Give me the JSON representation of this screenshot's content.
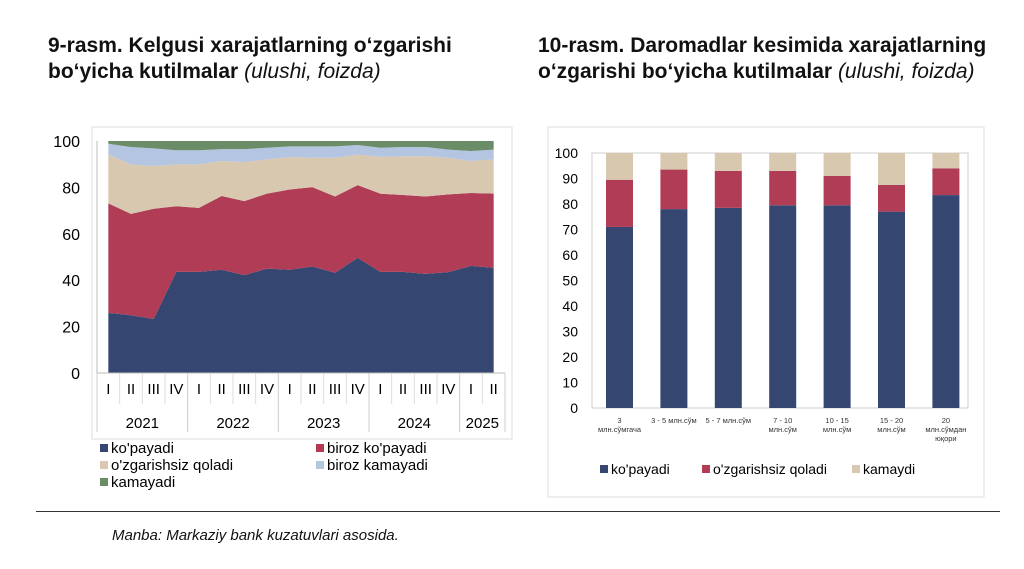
{
  "figure9": {
    "title_bold": "9-rasm. Kelgusi xarajatlarning o‘zgarishi bo‘yicha kutilmalar",
    "title_italic": "(ulushi, foizda)"
  },
  "figure10": {
    "title_bold": "10-rasm. Daromadlar kesimida xarajatlarning o‘zgarishi bo‘yicha kutilmalar",
    "title_italic": "(ulushi, foizda)"
  },
  "source": "Manba: Markaziy bank kuzatuvlari asosida.",
  "chart_data": [
    {
      "type": "area",
      "stacked": true,
      "ylim": [
        0,
        100
      ],
      "yticks": [
        0,
        20,
        40,
        60,
        80,
        100
      ],
      "grid": false,
      "legend": "bottom",
      "categories": [
        "I",
        "II",
        "III",
        "IV",
        "I",
        "II",
        "III",
        "IV",
        "I",
        "II",
        "III",
        "IV",
        "I",
        "II",
        "III",
        "IV",
        "I",
        "II"
      ],
      "year_groups": [
        {
          "label": "2021",
          "count": 4
        },
        {
          "label": "2022",
          "count": 4
        },
        {
          "label": "2023",
          "count": 4
        },
        {
          "label": "2024",
          "count": 4
        },
        {
          "label": "2025",
          "count": 2
        }
      ],
      "series": [
        {
          "name": "ko'payadi",
          "color": "#354770",
          "values": [
            25.9,
            24.9,
            23.3,
            43.6,
            43.6,
            44.5,
            42.2,
            45.0,
            44.5,
            45.9,
            43.2,
            49.6,
            43.6,
            43.6,
            42.7,
            43.5,
            46.2,
            45.3
          ]
        },
        {
          "name": "biroz ko'payadi",
          "color": "#b03c55",
          "values": [
            47.2,
            43.7,
            47.5,
            28.3,
            27.6,
            31.8,
            31.9,
            32.3,
            34.6,
            34.2,
            32.9,
            31.4,
            33.7,
            33.1,
            33.4,
            33.5,
            31.4,
            32.0
          ]
        },
        {
          "name": "o'zgarishsiz qoladi",
          "color": "#d7c8af",
          "values": [
            21.1,
            21.3,
            18.4,
            18.0,
            18.7,
            15.1,
            16.8,
            14.8,
            14.0,
            12.7,
            16.7,
            13.2,
            15.9,
            16.7,
            17.3,
            15.8,
            13.8,
            14.8
          ]
        },
        {
          "name": "biroz kamayadi",
          "color": "#b4c5e2",
          "values": [
            4.6,
            7.5,
            7.6,
            6.1,
            6.1,
            5.1,
            5.6,
            5.0,
            4.6,
            4.9,
            4.9,
            4.1,
            3.9,
            4.0,
            4.0,
            3.5,
            4.3,
            4.2
          ]
        },
        {
          "name": "kamayadi",
          "color": "#6a8c66",
          "values": [
            1.2,
            2.6,
            3.2,
            4.0,
            4.0,
            3.5,
            3.5,
            2.9,
            2.3,
            2.3,
            2.3,
            1.7,
            2.9,
            2.6,
            2.6,
            3.7,
            4.3,
            3.7
          ]
        }
      ]
    },
    {
      "type": "bar",
      "stacked": true,
      "ylim": [
        0,
        100
      ],
      "yticks": [
        0,
        10,
        20,
        30,
        40,
        50,
        60,
        70,
        80,
        90,
        100
      ],
      "grid": false,
      "legend": "bottom",
      "categories": [
        [
          "3",
          "млн.сўмгача"
        ],
        [
          "3 - 5 млн.сўм"
        ],
        [
          "5 - 7 млн.сўм"
        ],
        [
          "7 - 10",
          "млн.сўм"
        ],
        [
          "10 - 15",
          "млн.сўм"
        ],
        [
          "15 - 20",
          "млн.сўм"
        ],
        [
          "20",
          "млн.сўмдан",
          "юқори"
        ]
      ],
      "series": [
        {
          "name": "ko'payadi",
          "color": "#354770",
          "values": [
            71.0,
            78.0,
            78.5,
            79.5,
            79.5,
            77.0,
            83.5
          ]
        },
        {
          "name": "o'zgarishsiz qoladi",
          "color": "#b03c55",
          "values": [
            18.5,
            15.5,
            14.5,
            13.5,
            11.5,
            10.5,
            10.5
          ]
        },
        {
          "name": "kamaydi",
          "color": "#d7c8af",
          "values": [
            10.5,
            6.5,
            7.0,
            7.0,
            9.0,
            12.5,
            6.0
          ]
        }
      ]
    }
  ]
}
